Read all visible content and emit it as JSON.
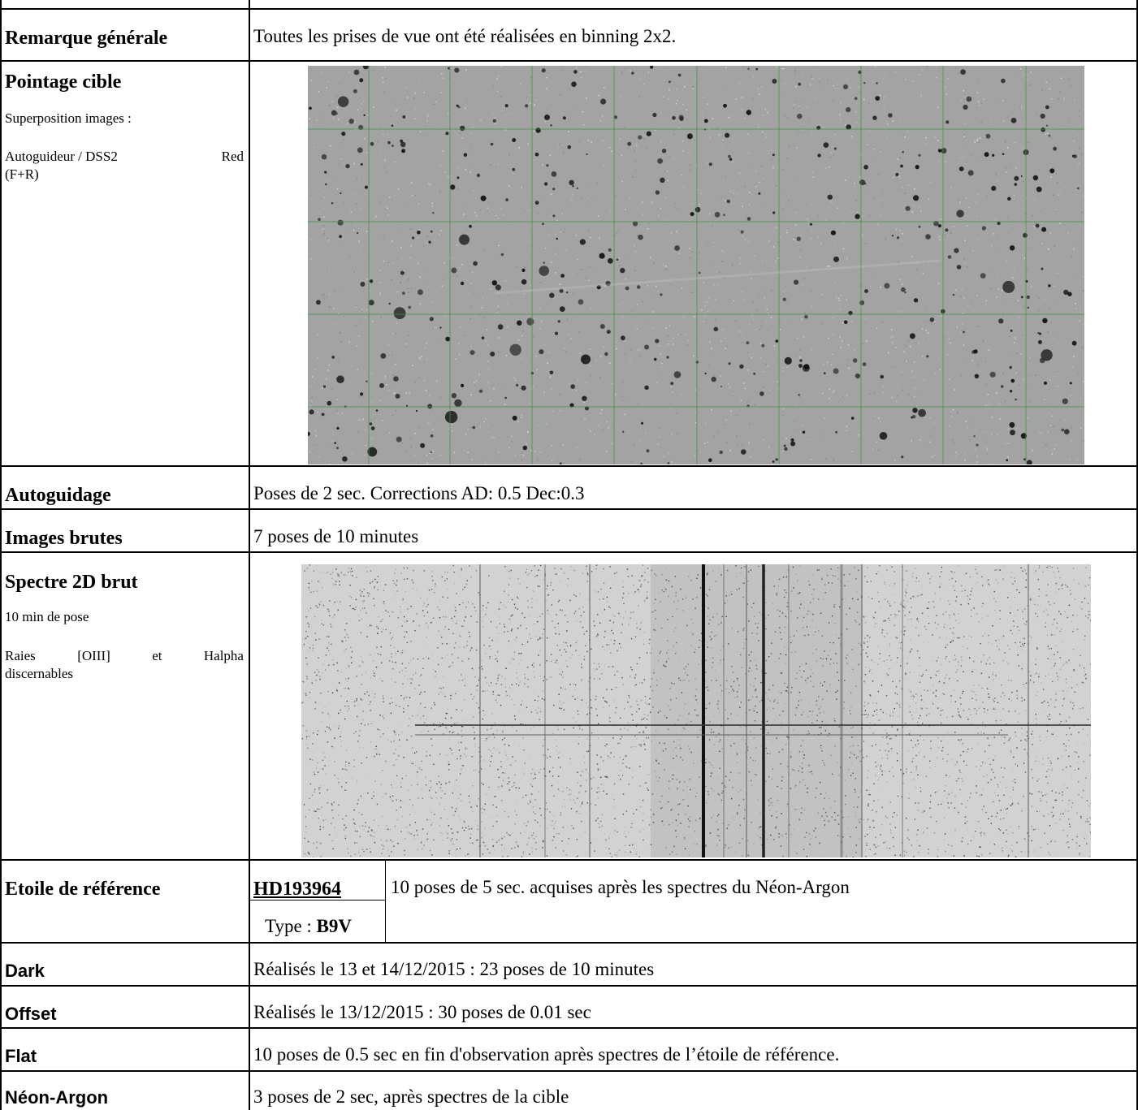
{
  "rows": {
    "remarque": {
      "label": "Remarque générale",
      "value": "Toutes les prises de vue ont été réalisées en binning 2x2."
    },
    "pointage": {
      "label": "Pointage cible",
      "note1": "Superposition images :",
      "note2_a": "Autoguideur / DSS2",
      "note2_b": "Red",
      "note2_c": "(F+R)"
    },
    "autoguidage": {
      "label": "Autoguidage",
      "value": "Poses de 2 sec. Corrections AD: 0.5 Dec:0.3"
    },
    "images_brutes": {
      "label": "Images brutes",
      "value": "7 poses de 10 minutes"
    },
    "spectre": {
      "label": "Spectre 2D brut",
      "note1": "10 min de pose",
      "note2_a": "Raies",
      "note2_b": "[OIII]",
      "note2_c": "et",
      "note2_d": "Halpha",
      "note2_e": "discernables"
    },
    "etoile": {
      "label": "Etoile de référence",
      "star_id": "HD193964",
      "type_prefix": "Type : ",
      "type_value": "B9V",
      "value": "10 poses de 5 sec. acquises après les spectres du Néon-Argon"
    },
    "dark": {
      "label": "Dark",
      "value": "Réalisés le 13 et 14/12/2015 : 23 poses de 10 minutes"
    },
    "offset": {
      "label": "Offset",
      "value": "Réalisés le 13/12/2015 : 30 poses de 0.01 sec"
    },
    "flat": {
      "label": "Flat",
      "value": "10 poses de 0.5 sec en fin d'observation après spectres de l’étoile de référence."
    },
    "neon": {
      "label": "Néon-Argon",
      "value": "3 poses de 2 sec, après spectres de la cible"
    }
  },
  "colors": {
    "grid_line": "#000000",
    "sky_bg": "#a3a3a3",
    "overlay_grid": "#3f8f3f",
    "spectrum_bg": "#d2d2d2"
  }
}
